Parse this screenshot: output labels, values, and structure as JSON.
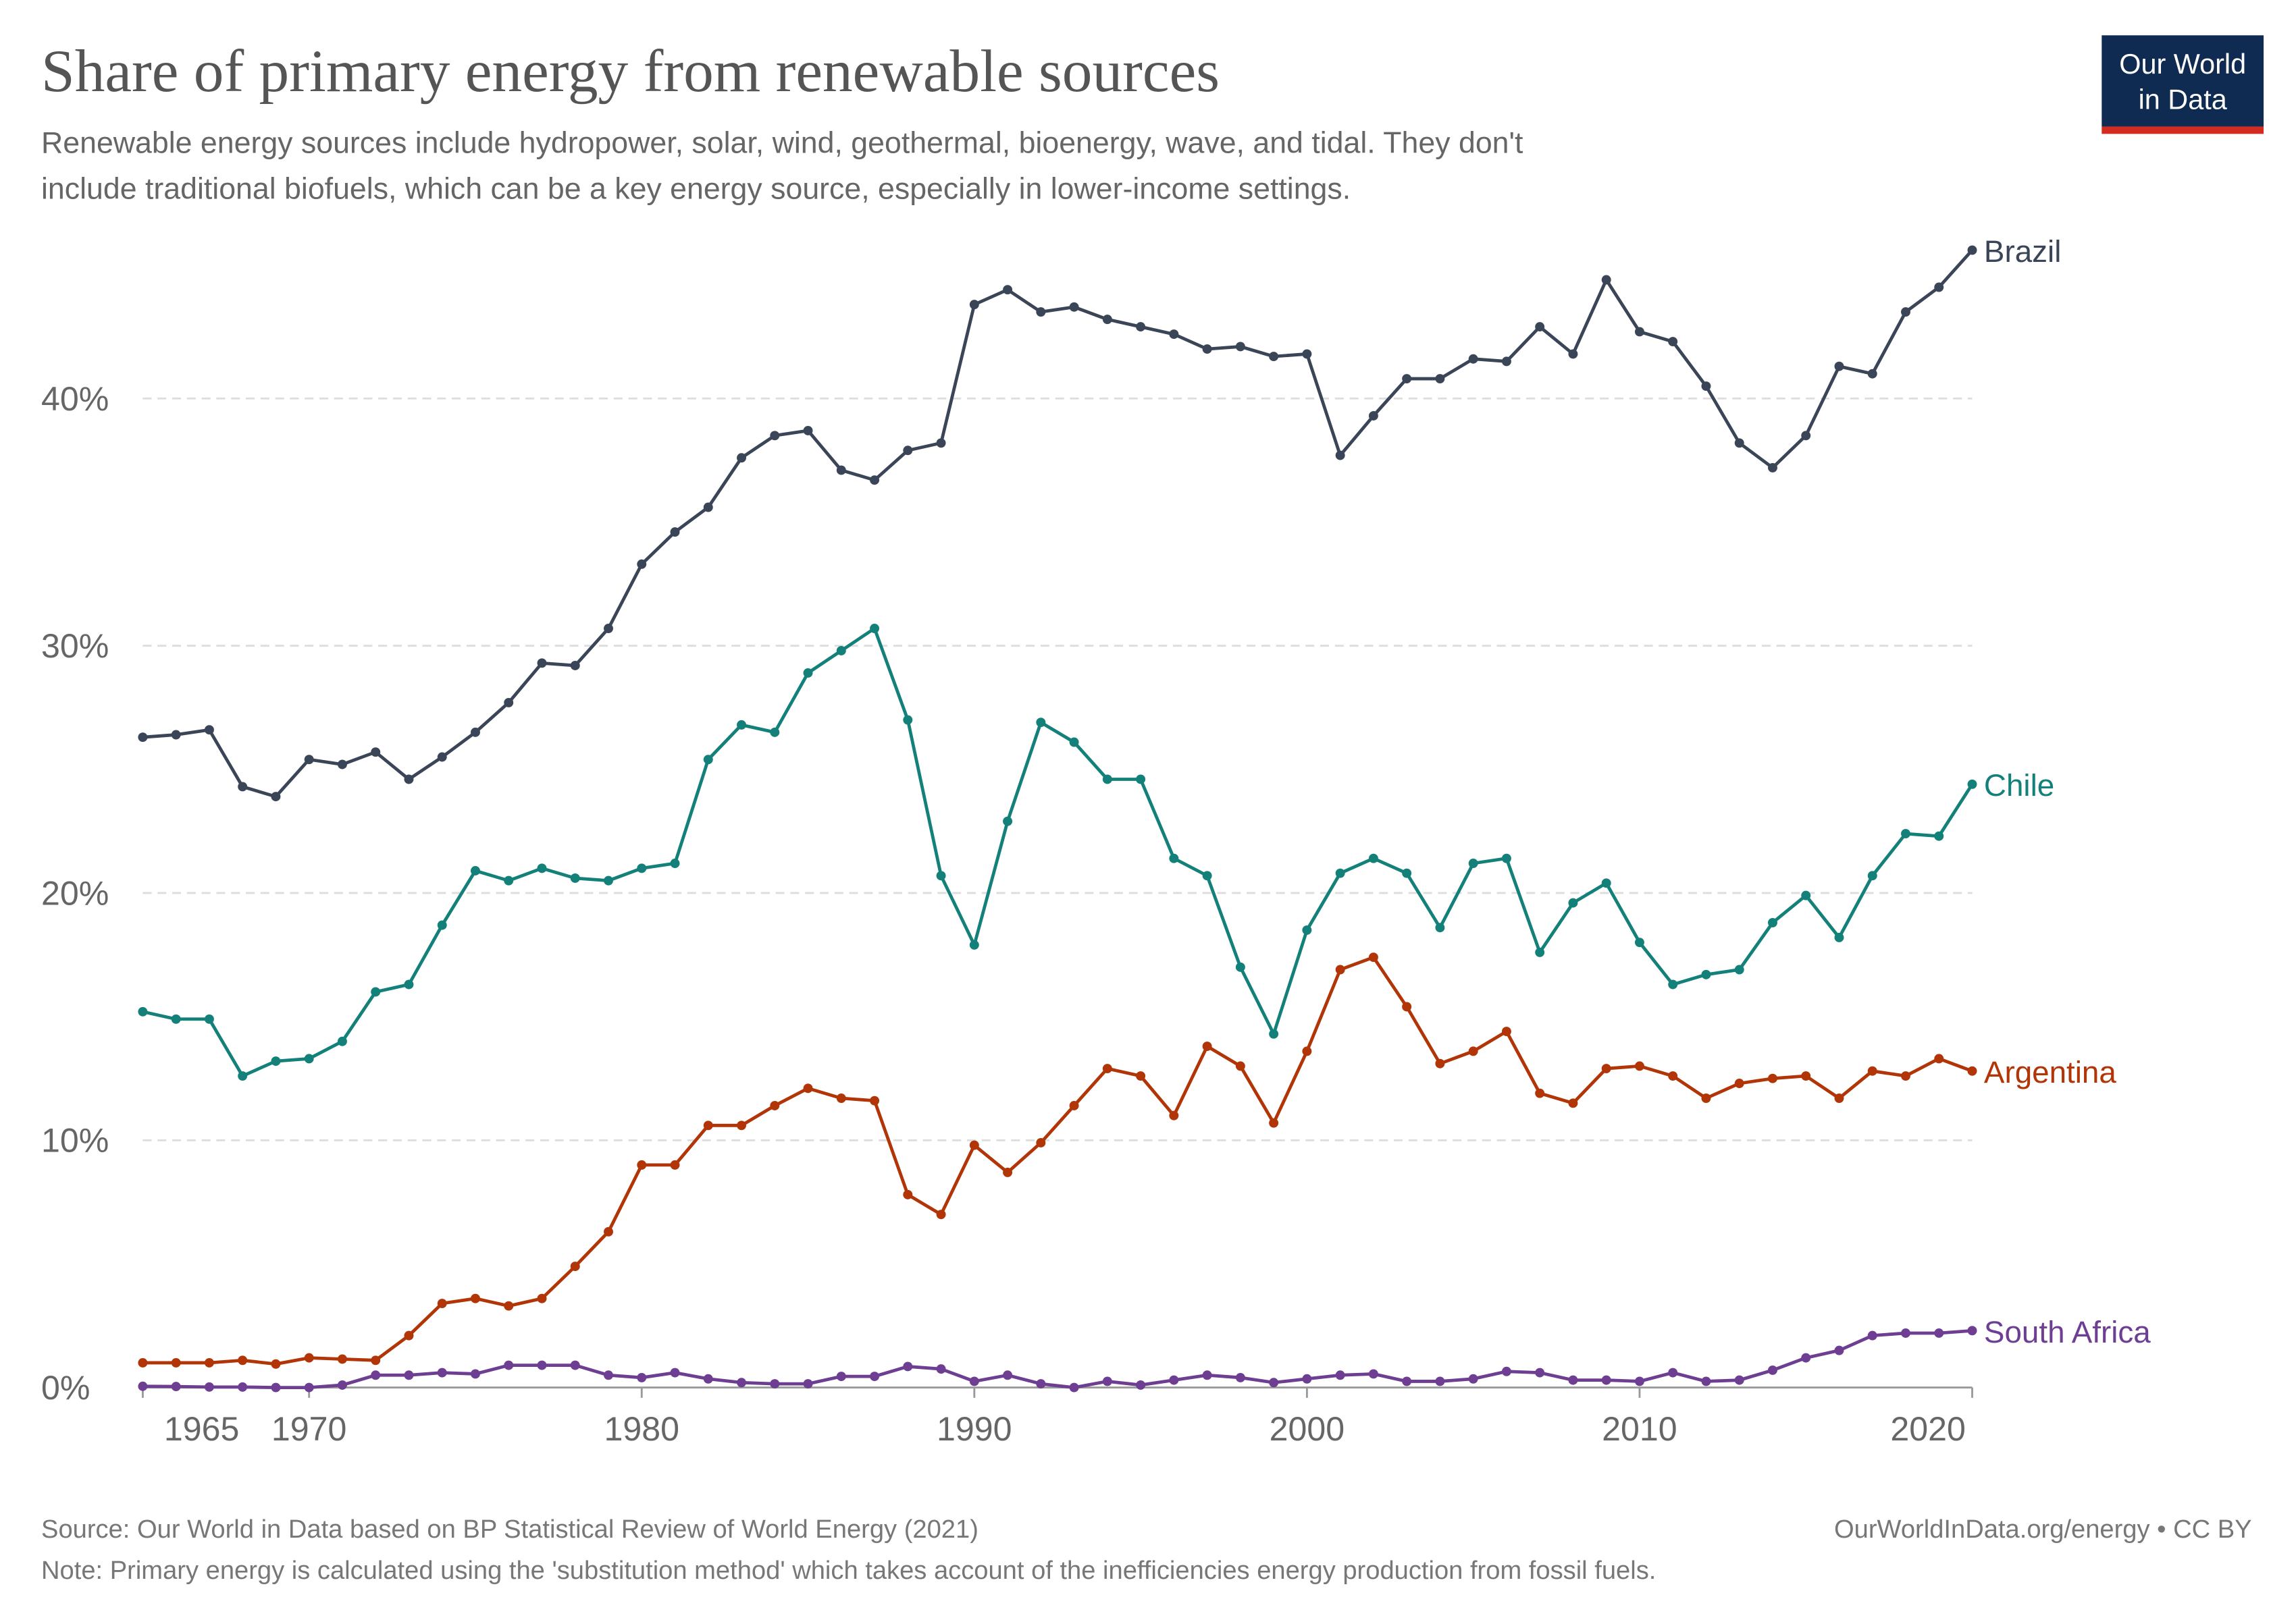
{
  "logo": [
    "Our World",
    "in Data"
  ],
  "chart_data": {
    "type": "line",
    "title": "Share of primary energy from renewable sources",
    "subtitle": [
      "Renewable energy sources include hydropower, solar, wind, geothermal, bioenergy, wave, and tidal. They don't",
      "include traditional biofuels, which can be a key energy source, especially in lower-income settings."
    ],
    "source": "Source: Our World in Data based on BP Statistical Review of World Energy (2021)",
    "note": "Note: Primary energy is calculated using the 'substitution method' which takes account of the inefficiencies energy production from fossil fuels.",
    "credit": "OurWorldInData.org/energy • CC BY",
    "xlim": [
      1965,
      2020
    ],
    "xticks": [
      1965,
      1970,
      1980,
      1990,
      2000,
      2010,
      2020
    ],
    "ylim": [
      0,
      46
    ],
    "yticks": [
      {
        "value": 0,
        "label": "0%"
      },
      {
        "value": 10,
        "label": "10%"
      },
      {
        "value": 20,
        "label": "20%"
      },
      {
        "value": 30,
        "label": "30%"
      },
      {
        "value": 40,
        "label": "40%"
      }
    ],
    "grid": true,
    "x": [
      1965,
      1966,
      1967,
      1968,
      1969,
      1970,
      1971,
      1972,
      1973,
      1974,
      1975,
      1976,
      1977,
      1978,
      1979,
      1980,
      1981,
      1982,
      1983,
      1984,
      1985,
      1986,
      1987,
      1988,
      1989,
      1990,
      1991,
      1992,
      1993,
      1994,
      1995,
      1996,
      1997,
      1998,
      1999,
      2000,
      2001,
      2002,
      2003,
      2004,
      2005,
      2006,
      2007,
      2008,
      2009,
      2010,
      2011,
      2012,
      2013,
      2014,
      2015,
      2016,
      2017,
      2018,
      2019,
      2020
    ],
    "series": [
      {
        "name": "Brazil",
        "color": "#3b4558",
        "values": [
          26.3,
          26.4,
          26.6,
          24.3,
          23.9,
          25.4,
          25.2,
          25.7,
          24.6,
          25.5,
          26.5,
          27.7,
          29.3,
          29.2,
          30.7,
          33.3,
          34.6,
          35.6,
          37.6,
          38.5,
          38.7,
          37.1,
          36.7,
          37.9,
          38.2,
          43.8,
          44.4,
          43.5,
          43.7,
          43.2,
          42.9,
          42.6,
          42.0,
          42.1,
          41.7,
          41.8,
          37.7,
          39.3,
          40.8,
          40.8,
          41.6,
          41.5,
          42.9,
          41.8,
          44.8,
          42.7,
          42.3,
          40.5,
          38.2,
          37.2,
          38.5,
          41.3,
          41.0,
          43.5,
          44.5,
          46.0
        ]
      },
      {
        "name": "Chile",
        "color": "#138079",
        "values": [
          15.2,
          14.9,
          14.9,
          12.6,
          13.2,
          13.3,
          14.0,
          16.0,
          16.3,
          18.7,
          20.9,
          20.5,
          21.0,
          20.6,
          20.5,
          21.0,
          21.2,
          25.4,
          26.8,
          26.5,
          28.9,
          29.8,
          30.7,
          27.0,
          20.7,
          17.9,
          22.9,
          26.9,
          26.1,
          24.6,
          24.6,
          21.4,
          20.7,
          17.0,
          14.3,
          18.5,
          20.8,
          21.4,
          20.8,
          18.6,
          21.2,
          21.4,
          17.6,
          19.6,
          20.4,
          18.0,
          16.3,
          16.7,
          16.9,
          18.8,
          19.9,
          18.2,
          20.7,
          22.4,
          22.3,
          24.4
        ]
      },
      {
        "name": "Argentina",
        "color": "#b13507",
        "values": [
          1.0,
          1.0,
          1.0,
          1.1,
          0.95,
          1.2,
          1.15,
          1.1,
          2.1,
          3.4,
          3.6,
          3.3,
          3.6,
          4.9,
          6.3,
          9.0,
          9.0,
          10.6,
          10.6,
          11.4,
          12.1,
          11.7,
          11.6,
          7.8,
          7.0,
          9.8,
          8.7,
          9.9,
          11.4,
          12.9,
          12.6,
          11.0,
          13.8,
          13.0,
          10.7,
          13.6,
          16.9,
          17.4,
          15.4,
          13.1,
          13.6,
          14.4,
          11.9,
          11.5,
          12.9,
          13.0,
          12.6,
          11.7,
          12.3,
          12.5,
          12.6,
          11.7,
          12.8,
          12.6,
          13.3,
          12.8
        ]
      },
      {
        "name": "South Africa",
        "color": "#6d3e91",
        "values": [
          0.05,
          0.04,
          0.02,
          0.02,
          0,
          0,
          0.1,
          0.5,
          0.5,
          0.6,
          0.55,
          0.9,
          0.9,
          0.9,
          0.5,
          0.4,
          0.6,
          0.35,
          0.2,
          0.15,
          0.15,
          0.45,
          0.45,
          0.85,
          0.75,
          0.25,
          0.5,
          0.15,
          0,
          0.25,
          0.1,
          0.3,
          0.5,
          0.4,
          0.2,
          0.35,
          0.5,
          0.55,
          0.25,
          0.25,
          0.35,
          0.65,
          0.6,
          0.3,
          0.3,
          0.25,
          0.6,
          0.25,
          0.3,
          0.7,
          1.2,
          1.5,
          2.1,
          2.2,
          2.2,
          2.3
        ]
      }
    ]
  }
}
